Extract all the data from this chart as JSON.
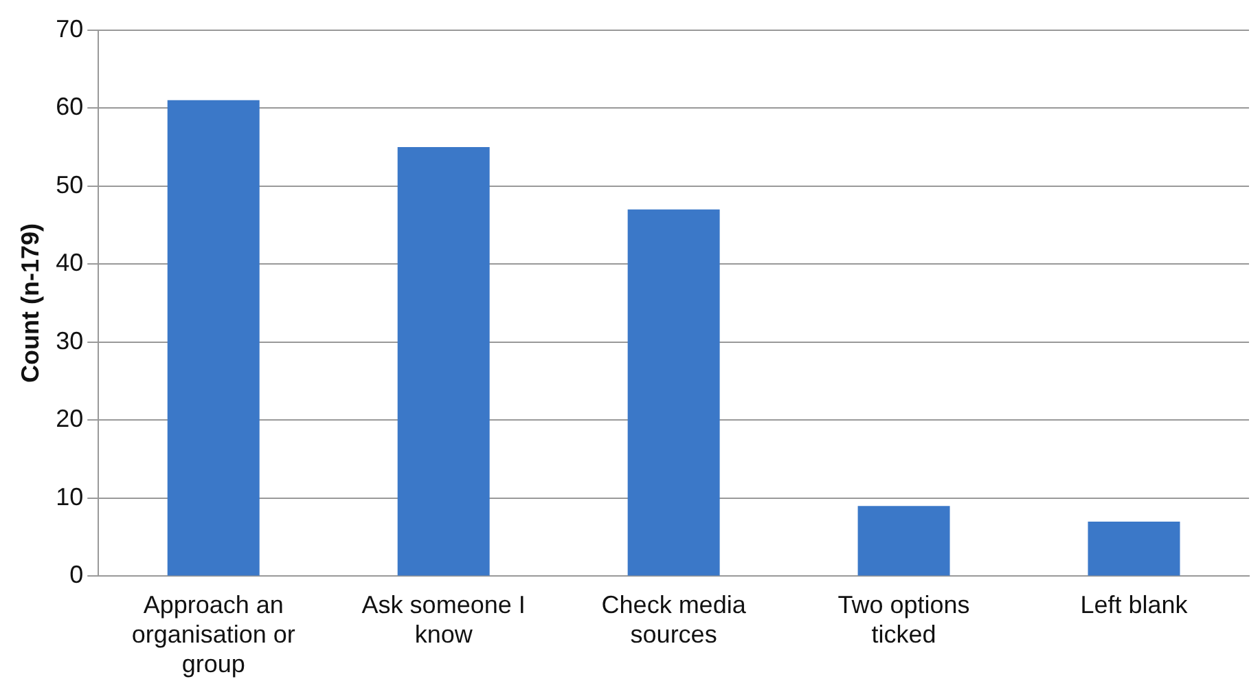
{
  "chart_data": {
    "type": "bar",
    "ylabel": "Count (n-179)",
    "categories": [
      "Approach an organisation or group",
      "Ask someone I know",
      "Check media sources",
      "Two options ticked",
      "Left blank"
    ],
    "values": [
      61,
      55,
      47,
      9,
      7
    ],
    "color": "#3b78c8",
    "ylim": [
      0,
      70
    ],
    "yticks": [
      0,
      10,
      20,
      30,
      40,
      50,
      60,
      70
    ],
    "grid": "y",
    "legend": false
  }
}
